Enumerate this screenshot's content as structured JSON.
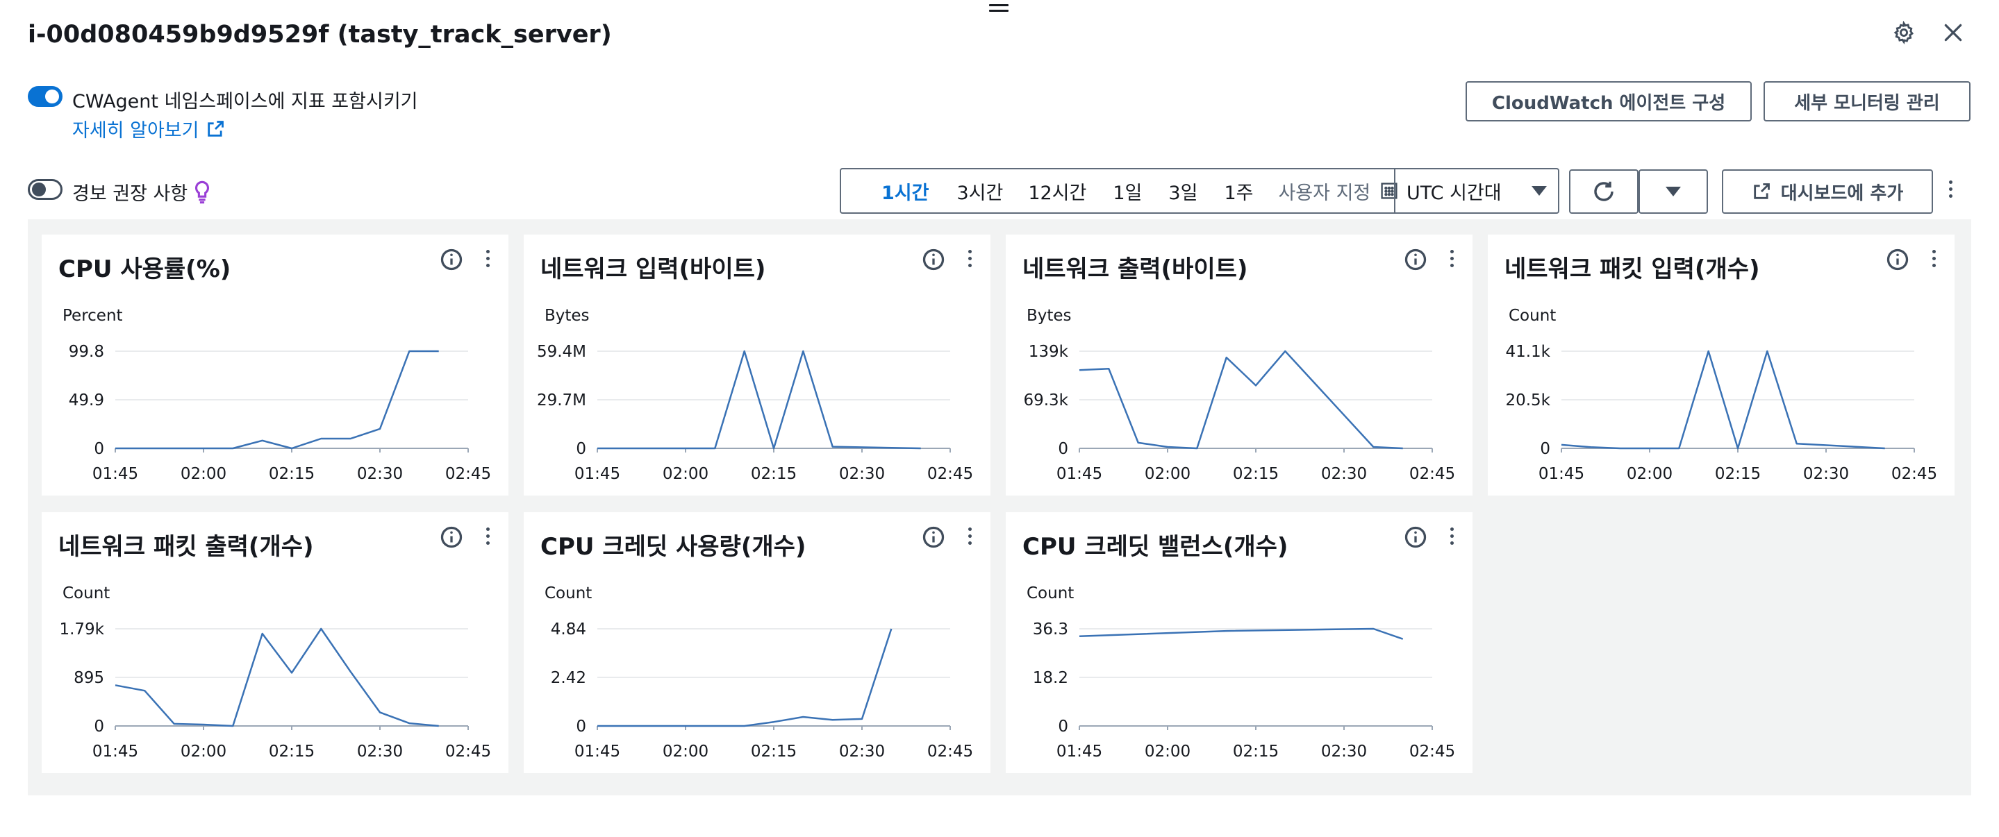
{
  "header": {
    "title": "i-00d080459b9d9529f (tasty_track_server)"
  },
  "options": {
    "cwagent_label": "CWAgent 네임스페이스에 지표 포함시키기",
    "cwagent_enabled": true,
    "learn_more": "자세히 알아보기",
    "alarm_label": "경보 권장 사항",
    "alarm_enabled": false
  },
  "buttons": {
    "cloudwatch_agent": "CloudWatch 에이전트 구성",
    "detailed_monitoring": "세부 모니터링 관리",
    "add_to_dashboard": "대시보드에 추가"
  },
  "time_range": {
    "options": [
      "1시간",
      "3시간",
      "12시간",
      "1일",
      "3일",
      "1주"
    ],
    "selected": "1시간",
    "custom": "사용자 지정",
    "timezone": "UTC 시간대"
  },
  "colors": {
    "line": "#3a72b5",
    "accent": "#0972d3",
    "panel_bg": "#f2f3f3"
  },
  "chart_data": [
    {
      "type": "line",
      "title": "CPU 사용률(%)",
      "ylabel": "Percent",
      "yticks": [
        "99.8",
        "49.9",
        "0"
      ],
      "ylim": [
        0,
        99.8
      ],
      "xticks": [
        "01:45",
        "02:00",
        "02:15",
        "02:30",
        "02:45"
      ],
      "x": [
        "01:45",
        "01:50",
        "01:55",
        "02:00",
        "02:05",
        "02:10",
        "02:15",
        "02:20",
        "02:25",
        "02:30",
        "02:35",
        "02:40"
      ],
      "values": [
        0,
        0,
        0,
        0,
        0,
        8,
        0,
        10,
        10,
        20,
        99.8,
        99.8
      ]
    },
    {
      "type": "line",
      "title": "네트워크 입력(바이트)",
      "ylabel": "Bytes",
      "yticks": [
        "59.4M",
        "29.7M",
        "0"
      ],
      "ylim": [
        0,
        59.4
      ],
      "xticks": [
        "01:45",
        "02:00",
        "02:15",
        "02:30",
        "02:45"
      ],
      "x": [
        "01:45",
        "01:50",
        "01:55",
        "02:00",
        "02:05",
        "02:10",
        "02:15",
        "02:20",
        "02:25",
        "02:40"
      ],
      "values": [
        0,
        0,
        0,
        0,
        0,
        59.4,
        0,
        59.4,
        1,
        0
      ]
    },
    {
      "type": "line",
      "title": "네트워크 출력(바이트)",
      "ylabel": "Bytes",
      "yticks": [
        "139k",
        "69.3k",
        "0"
      ],
      "ylim": [
        0,
        139
      ],
      "xticks": [
        "01:45",
        "02:00",
        "02:15",
        "02:30",
        "02:45"
      ],
      "x": [
        "01:45",
        "01:50",
        "01:55",
        "02:00",
        "02:05",
        "02:10",
        "02:15",
        "02:20",
        "02:35",
        "02:40"
      ],
      "values": [
        112,
        114,
        8,
        2,
        0,
        130,
        90,
        139,
        2,
        0
      ]
    },
    {
      "type": "line",
      "title": "네트워크 패킷 입력(개수)",
      "ylabel": "Count",
      "yticks": [
        "41.1k",
        "20.5k",
        "0"
      ],
      "ylim": [
        0,
        41.1
      ],
      "xticks": [
        "01:45",
        "02:00",
        "02:15",
        "02:30",
        "02:45"
      ],
      "x": [
        "01:45",
        "01:50",
        "01:55",
        "02:00",
        "02:05",
        "02:10",
        "02:15",
        "02:20",
        "02:25",
        "02:40"
      ],
      "values": [
        1.5,
        0.5,
        0,
        0,
        0,
        41.1,
        0,
        41.1,
        2,
        0
      ]
    },
    {
      "type": "line",
      "title": "네트워크 패킷 출력(개수)",
      "ylabel": "Count",
      "yticks": [
        "1.79k",
        "895",
        "0"
      ],
      "ylim": [
        0,
        1790
      ],
      "xticks": [
        "01:45",
        "02:00",
        "02:15",
        "02:30",
        "02:45"
      ],
      "x": [
        "01:45",
        "01:50",
        "01:55",
        "02:00",
        "02:05",
        "02:10",
        "02:15",
        "02:20",
        "02:25",
        "02:30",
        "02:35",
        "02:40"
      ],
      "values": [
        750,
        650,
        40,
        25,
        0,
        1700,
        980,
        1790,
        1000,
        250,
        50,
        0
      ]
    },
    {
      "type": "line",
      "title": "CPU 크레딧 사용량(개수)",
      "ylabel": "Count",
      "yticks": [
        "4.84",
        "2.42",
        "0"
      ],
      "ylim": [
        0,
        4.84
      ],
      "xticks": [
        "01:45",
        "02:00",
        "02:15",
        "02:30",
        "02:45"
      ],
      "x": [
        "01:45",
        "01:50",
        "01:55",
        "02:00",
        "02:05",
        "02:10",
        "02:15",
        "02:20",
        "02:25",
        "02:30",
        "02:35"
      ],
      "values": [
        0,
        0,
        0,
        0,
        0,
        0,
        0.2,
        0.45,
        0.3,
        0.35,
        4.84
      ]
    },
    {
      "type": "line",
      "title": "CPU 크레딧 밸런스(개수)",
      "ylabel": "Count",
      "yticks": [
        "36.3",
        "18.2",
        "0"
      ],
      "ylim": [
        0,
        36.3
      ],
      "xticks": [
        "01:45",
        "02:00",
        "02:15",
        "02:30",
        "02:45"
      ],
      "x": [
        "01:45",
        "02:10",
        "02:35",
        "02:40"
      ],
      "values": [
        33.5,
        35.5,
        36.3,
        32.5
      ]
    }
  ]
}
